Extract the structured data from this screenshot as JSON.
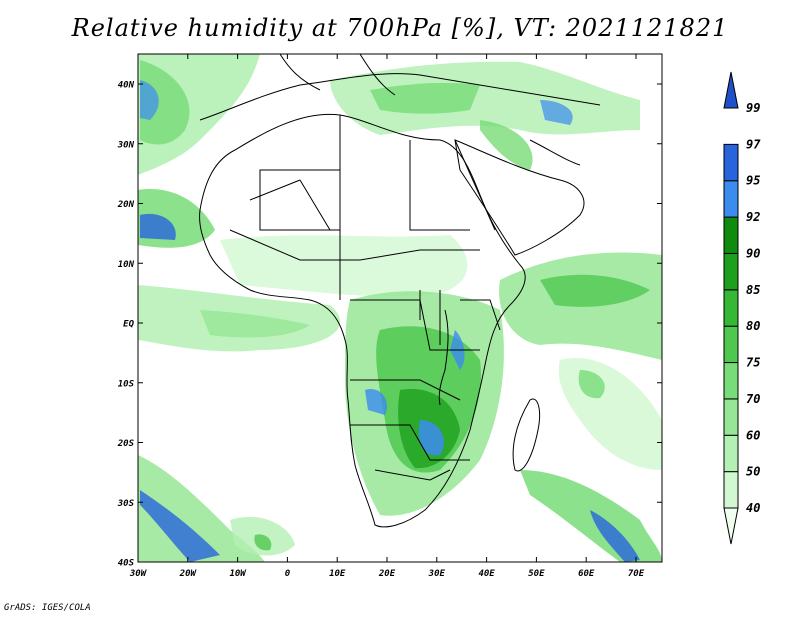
{
  "title": "Relative humidity at 700hPa [%], VT: 2021121821",
  "credit": "GrADS: IGES/COLA",
  "map": {
    "lat_labels": [
      "40N",
      "30N",
      "20N",
      "10N",
      "EQ",
      "10S",
      "20S",
      "30S",
      "40S"
    ],
    "lon_labels": [
      "30W",
      "20W",
      "10W",
      "0",
      "10E",
      "20E",
      "30E",
      "40E",
      "50E",
      "60E",
      "70E"
    ]
  },
  "colorbar": {
    "colors": [
      "#f0fff0",
      "#d2f8d2",
      "#b4f0b4",
      "#96e696",
      "#78dc78",
      "#50c850",
      "#36b836",
      "#1ea01e",
      "#0f8c0f",
      "#3c8cf0",
      "#2864dc",
      "#1e50c8"
    ],
    "labels": [
      "40",
      "50",
      "60",
      "70",
      "75",
      "80",
      "85",
      "90",
      "92",
      "95",
      "97",
      "99"
    ]
  }
}
